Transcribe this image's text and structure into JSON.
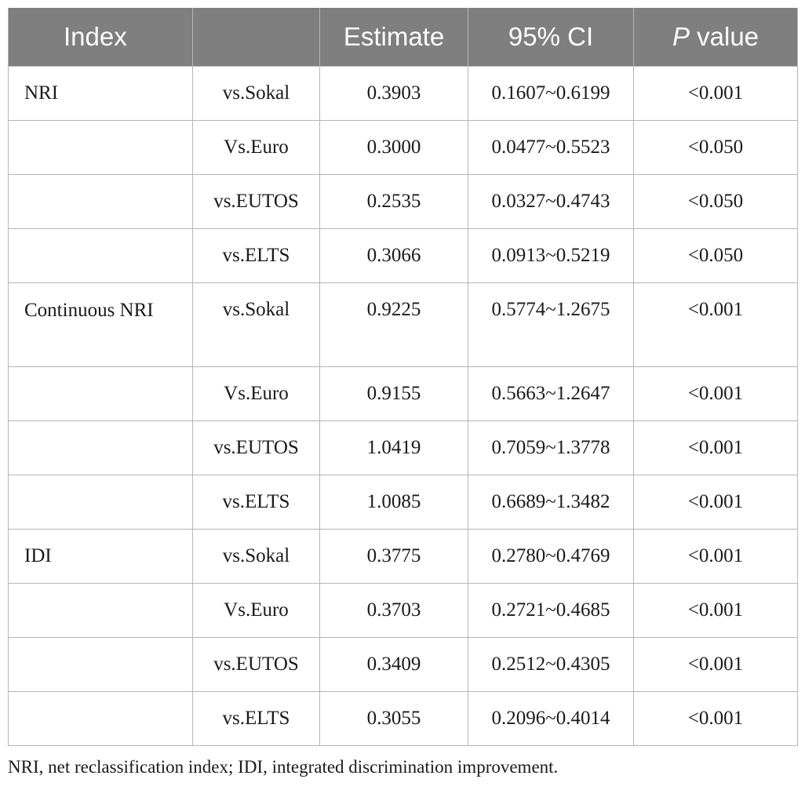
{
  "table": {
    "headers": {
      "index": "Index",
      "comparison": "",
      "estimate": "Estimate",
      "ci": "95% CI",
      "p_italic": "P",
      "p_rest": " value"
    },
    "rows": [
      {
        "index": "NRI",
        "comparison": "vs.Sokal",
        "estimate": "0.3903",
        "ci": "0.1607~0.6199",
        "p": "<0.001"
      },
      {
        "index": "",
        "comparison": "Vs.Euro",
        "estimate": "0.3000",
        "ci": "0.0477~0.5523",
        "p": "<0.050"
      },
      {
        "index": "",
        "comparison": "vs.EUTOS",
        "estimate": "0.2535",
        "ci": "0.0327~0.4743",
        "p": "<0.050"
      },
      {
        "index": "",
        "comparison": "vs.ELTS",
        "estimate": "0.3066",
        "ci": "0.0913~0.5219",
        "p": "<0.050"
      },
      {
        "index": "Continuous NRI",
        "comparison": "vs.Sokal",
        "estimate": "0.9225",
        "ci": "0.5774~1.2675",
        "p": "<0.001"
      },
      {
        "index": "",
        "comparison": "Vs.Euro",
        "estimate": "0.9155",
        "ci": "0.5663~1.2647",
        "p": "<0.001"
      },
      {
        "index": "",
        "comparison": "vs.EUTOS",
        "estimate": "1.0419",
        "ci": "0.7059~1.3778",
        "p": "<0.001"
      },
      {
        "index": "",
        "comparison": "vs.ELTS",
        "estimate": "1.0085",
        "ci": "0.6689~1.3482",
        "p": "<0.001"
      },
      {
        "index": "IDI",
        "comparison": "vs.Sokal",
        "estimate": "0.3775",
        "ci": "0.2780~0.4769",
        "p": "<0.001"
      },
      {
        "index": "",
        "comparison": "Vs.Euro",
        "estimate": "0.3703",
        "ci": "0.2721~0.4685",
        "p": "<0.001"
      },
      {
        "index": "",
        "comparison": "vs.EUTOS",
        "estimate": "0.3409",
        "ci": "0.2512~0.4305",
        "p": "<0.001"
      },
      {
        "index": "",
        "comparison": "vs.ELTS",
        "estimate": "0.3055",
        "ci": "0.2096~0.4014",
        "p": "<0.001"
      }
    ]
  },
  "footnote": "NRI, net reclassification index; IDI, integrated discrimination improvement.",
  "colors": {
    "header_bg": "#7f7f7f",
    "header_text": "#ffffff",
    "grid": "#b5b5b5"
  }
}
